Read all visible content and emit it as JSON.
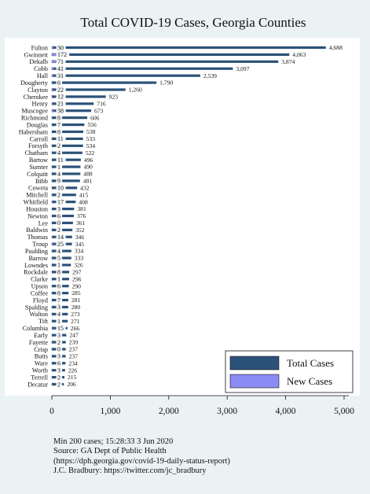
{
  "chart_data": {
    "type": "bar",
    "orientation": "horizontal",
    "title": "Total COVID-19 Cases, Georgia Counties",
    "xlim": [
      0,
      5000
    ],
    "xticks": [
      "0",
      "1,000",
      "2,000",
      "3,000",
      "4,000",
      "5,000"
    ],
    "xtick_values": [
      0,
      1000,
      2000,
      3000,
      4000,
      5000
    ],
    "grid": false,
    "legend_position": "bottom-right",
    "series": [
      {
        "name": "Total Cases",
        "color": "#2b5279"
      },
      {
        "name": "New Cases",
        "color": "#8b8bf5"
      }
    ],
    "categories": [
      "Fulton",
      "Gwinnett",
      "Dekalb",
      "Cobb",
      "Hall",
      "Dougherty",
      "Clayton",
      "Cherokee",
      "Henry",
      "Muscogee",
      "Richmond",
      "Douglas",
      "Habersham",
      "Carroll",
      "Forsyth",
      "Chatham",
      "Bartow",
      "Sumter",
      "Colquitt",
      "Bibb",
      "Coweta",
      "Mitchell",
      "Whitfield",
      "Houston",
      "Newton",
      "Lee",
      "Baldwin",
      "Thomas",
      "Troup",
      "Paulding",
      "Barrow",
      "Lowndes",
      "Rockdale",
      "Clarke",
      "Upson",
      "Coffee",
      "Floyd",
      "Spalding",
      "Walton",
      "Tift",
      "Columbia",
      "Early",
      "Fayette",
      "Crisp",
      "Butts",
      "Ware",
      "Worth",
      "Terrell",
      "Decatur"
    ],
    "total_cases": [
      4688,
      4063,
      3874,
      3097,
      2539,
      1790,
      1260,
      923,
      716,
      673,
      606,
      556,
      538,
      533,
      534,
      522,
      496,
      490,
      488,
      481,
      432,
      415,
      408,
      381,
      376,
      361,
      352,
      346,
      345,
      334,
      333,
      326,
      297,
      296,
      290,
      285,
      281,
      280,
      273,
      271,
      266,
      247,
      239,
      237,
      237,
      234,
      226,
      215,
      206
    ],
    "total_labels": [
      "4,688",
      "4,063",
      "3,874",
      "3,097",
      "2,539",
      "1,790",
      "1,260",
      "923",
      "716",
      "673",
      "606",
      "556",
      "538",
      "533",
      "534",
      "522",
      "496",
      "490",
      "488",
      "481",
      "432",
      "415",
      "408",
      "381",
      "376",
      "361",
      "352",
      "346",
      "345",
      "334",
      "333",
      "326",
      "297",
      "296",
      "290",
      "285",
      "281",
      "280",
      "273",
      "271",
      "266",
      "247",
      "239",
      "237",
      "237",
      "234",
      "226",
      "215",
      "206"
    ],
    "new_cases": [
      30,
      172,
      71,
      41,
      31,
      6,
      22,
      12,
      21,
      38,
      8,
      7,
      8,
      11,
      2,
      4,
      11,
      1,
      4,
      9,
      10,
      2,
      17,
      3,
      6,
      0,
      2,
      14,
      25,
      4,
      5,
      1,
      8,
      1,
      6,
      8,
      7,
      3,
      4,
      1,
      15,
      3,
      2,
      0,
      3,
      6,
      3,
      2,
      2
    ],
    "colors": {
      "total": "#2b5279",
      "new": "#8b8bf5",
      "background": "#eaf2f3",
      "plot": "#ffffff"
    }
  },
  "footnote": {
    "line1": "Min 200 cases; 15:28:33    3 Jun 2020",
    "line2": "Source: GA Dept of Public Health",
    "line3": "(https://dph.georgia.gov/covid-19-daily-status-report)",
    "line4": "J.C. Bradbury: https://twitter.com/jc_bradbury"
  }
}
